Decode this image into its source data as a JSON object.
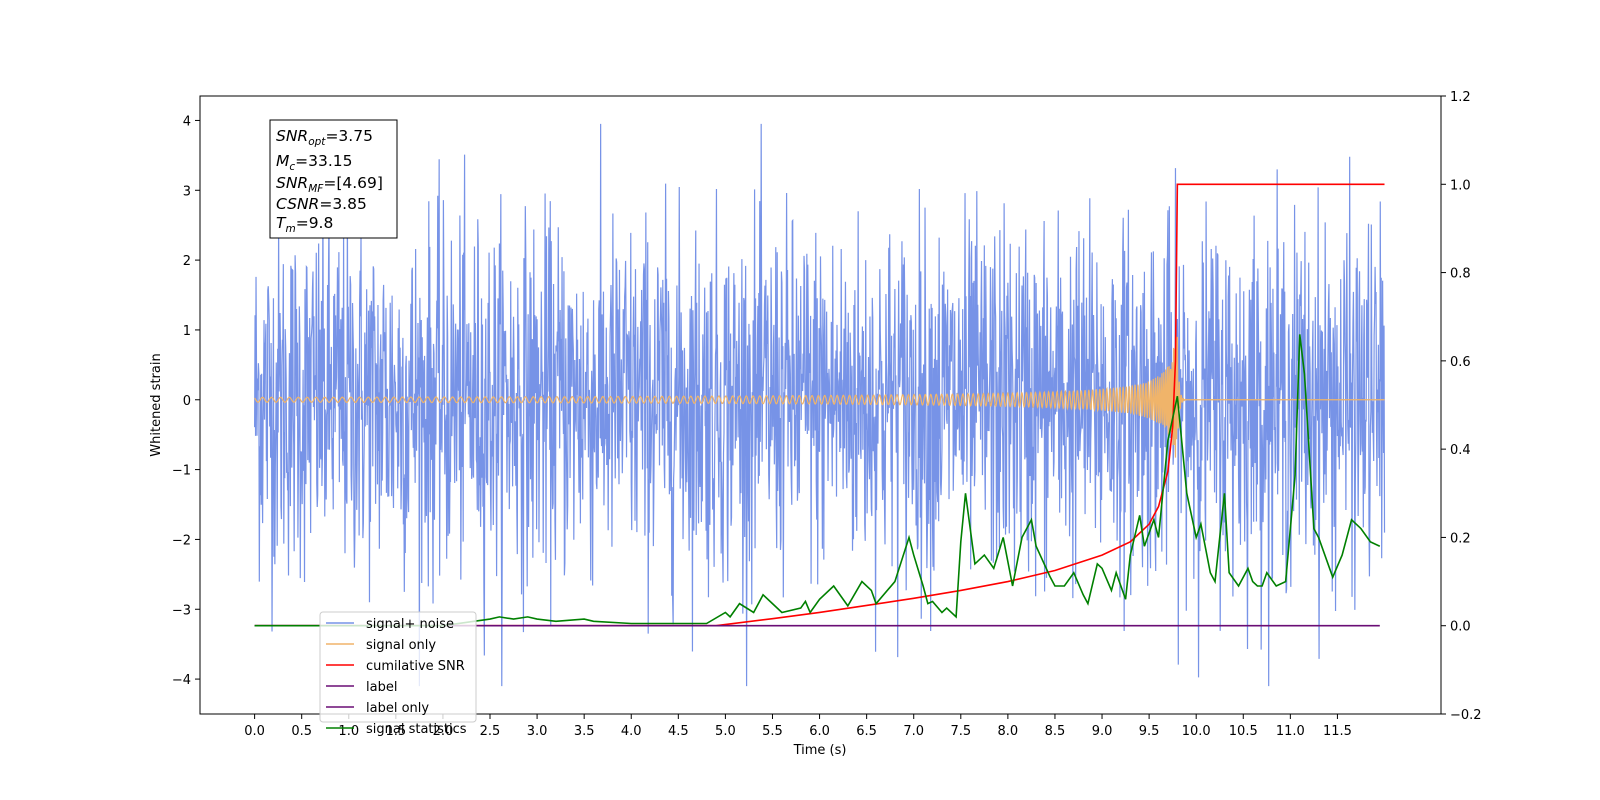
{
  "chart_data": {
    "type": "line",
    "xlabel": "Time (s)",
    "ylabel_left": "Whitened strain",
    "ylabel_right": "",
    "x_ticks": [
      "0.0",
      "0.5",
      "1.0",
      "1.5",
      "2.0",
      "2.5",
      "3.0",
      "3.5",
      "4.0",
      "4.5",
      "5.0",
      "5.5",
      "6.0",
      "6.5",
      "7.0",
      "7.5",
      "8.0",
      "8.5",
      "9.0",
      "9.5",
      "10.0",
      "10.5",
      "11.0",
      "11.5"
    ],
    "y_left_ticks": [
      "4",
      "3",
      "2",
      "1",
      "0",
      "−1",
      "−2",
      "−3",
      "−4"
    ],
    "y_right_ticks": [
      "1.2",
      "1.0",
      "0.8",
      "0.6",
      "0.4",
      "0.2",
      "0.0",
      "−0.2"
    ],
    "xlim": [
      -0.58,
      12.6
    ],
    "ylim_left": [
      -4.5,
      4.35
    ],
    "ylim_right": [
      -0.2,
      1.2
    ],
    "legend_placement": "lower-left",
    "series": [
      {
        "name": "signal+ noise",
        "color": "#7793e7",
        "axis": "left",
        "style": "noise",
        "x_range": [
          0.0,
          12.0
        ],
        "typical_band": [
          -2.3,
          2.3
        ],
        "extreme_range": [
          -4.1,
          3.95
        ]
      },
      {
        "name": "signal only",
        "color": "#f0b46a",
        "axis": "left",
        "style": "chirp",
        "x_range": [
          0.0,
          12.0
        ],
        "merger_time": 9.8,
        "peak_amplitude": 0.9
      },
      {
        "name": "cumilative SNR",
        "color": "#ff0000",
        "axis": "right",
        "x": [
          0.0,
          4.9,
          5.5,
          6.0,
          6.5,
          7.0,
          7.5,
          8.0,
          8.5,
          9.0,
          9.3,
          9.5,
          9.6,
          9.7,
          9.75,
          9.78,
          9.8,
          12.0
        ],
        "y": [
          0.0,
          0.0,
          0.016,
          0.03,
          0.046,
          0.062,
          0.08,
          0.1,
          0.125,
          0.16,
          0.19,
          0.23,
          0.27,
          0.35,
          0.45,
          0.6,
          1.0,
          1.0
        ]
      },
      {
        "name": "label",
        "color": "#6a0d75",
        "axis": "right",
        "x": [
          0.0,
          11.95
        ],
        "y": [
          0.0,
          0.0
        ]
      },
      {
        "name": "label only",
        "color": "#6a0d75",
        "axis": "right",
        "legend_only": true
      },
      {
        "name": "signal statistics",
        "color": "#008000",
        "axis": "right",
        "x": [
          0.0,
          1.0,
          2.0,
          2.5,
          2.6,
          2.75,
          2.9,
          3.0,
          3.2,
          3.5,
          3.6,
          4.0,
          4.5,
          4.8,
          5.0,
          5.05,
          5.15,
          5.3,
          5.4,
          5.5,
          5.6,
          5.8,
          5.85,
          5.9,
          6.0,
          6.15,
          6.3,
          6.45,
          6.55,
          6.6,
          6.8,
          6.95,
          7.0,
          7.1,
          7.15,
          7.2,
          7.3,
          7.35,
          7.45,
          7.5,
          7.55,
          7.65,
          7.75,
          7.85,
          7.95,
          8.05,
          8.15,
          8.25,
          8.3,
          8.45,
          8.5,
          8.6,
          8.7,
          8.8,
          8.85,
          8.95,
          9.0,
          9.1,
          9.15,
          9.25,
          9.3,
          9.4,
          9.45,
          9.55,
          9.6,
          9.7,
          9.8,
          9.9,
          10.0,
          10.05,
          10.15,
          10.2,
          10.3,
          10.35,
          10.45,
          10.55,
          10.6,
          10.65,
          10.7,
          10.75,
          10.85,
          10.95,
          11.05,
          11.1,
          11.15,
          11.25,
          11.3,
          11.45,
          11.55,
          11.65,
          11.75,
          11.85,
          11.95
        ],
        "y": [
          0.0,
          0.0,
          0.0,
          0.015,
          0.02,
          0.015,
          0.02,
          0.015,
          0.01,
          0.015,
          0.01,
          0.005,
          0.005,
          0.005,
          0.03,
          0.02,
          0.05,
          0.03,
          0.07,
          0.05,
          0.03,
          0.04,
          0.055,
          0.03,
          0.06,
          0.09,
          0.045,
          0.1,
          0.08,
          0.05,
          0.1,
          0.2,
          0.16,
          0.09,
          0.05,
          0.055,
          0.03,
          0.04,
          0.02,
          0.19,
          0.3,
          0.14,
          0.16,
          0.13,
          0.2,
          0.09,
          0.2,
          0.24,
          0.18,
          0.11,
          0.09,
          0.09,
          0.12,
          0.07,
          0.05,
          0.14,
          0.13,
          0.08,
          0.12,
          0.06,
          0.16,
          0.25,
          0.18,
          0.24,
          0.2,
          0.42,
          0.52,
          0.3,
          0.2,
          0.23,
          0.12,
          0.1,
          0.3,
          0.12,
          0.09,
          0.13,
          0.1,
          0.09,
          0.09,
          0.12,
          0.09,
          0.1,
          0.34,
          0.66,
          0.57,
          0.22,
          0.2,
          0.11,
          0.16,
          0.24,
          0.22,
          0.19,
          0.18
        ]
      }
    ]
  },
  "annotation": {
    "snr_opt": {
      "main": "SNR",
      "sub": "opt",
      "value": "=3.75"
    },
    "mc": {
      "main": "M",
      "sub": "c",
      "value": "=33.15"
    },
    "snr_mf": {
      "main": "SNR",
      "sub": "MF",
      "value": "=[4.69]"
    },
    "csnr": {
      "main": "CSNR",
      "value": "=3.85"
    },
    "tm": {
      "main": "T",
      "sub": "m",
      "value": "=9.8"
    }
  }
}
